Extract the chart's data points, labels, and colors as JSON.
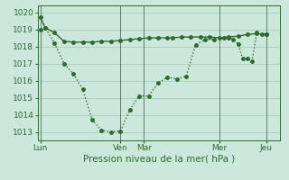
{
  "line_flat_x": [
    0,
    0.5,
    1.5,
    2.5,
    3.5,
    4.5,
    5.5,
    6.5,
    7.5,
    8.5,
    9.5,
    10.5,
    11.5,
    12.5,
    13.5,
    14,
    15,
    16,
    17,
    18,
    19,
    20,
    21,
    22,
    23,
    24
  ],
  "line_flat_y": [
    1019.7,
    1019.1,
    1018.8,
    1018.3,
    1018.25,
    1018.25,
    1018.25,
    1018.3,
    1018.3,
    1018.35,
    1018.4,
    1018.45,
    1018.5,
    1018.5,
    1018.5,
    1018.5,
    1018.55,
    1018.55,
    1018.55,
    1018.55,
    1018.5,
    1018.55,
    1018.6,
    1018.7,
    1018.75,
    1018.7
  ],
  "line_dip_x": [
    0,
    0.5,
    1.5,
    2.5,
    3.5,
    4.5,
    5.5,
    6.5,
    7.5,
    8.5,
    9.5,
    10.5,
    11.5,
    12.5,
    13.5,
    14.5,
    15.5,
    16.5,
    17.5,
    18.5,
    19.5,
    20,
    20.5,
    21,
    21.5,
    22,
    22.5,
    23,
    23.5,
    24
  ],
  "line_dip_y": [
    1019.0,
    1019.1,
    1018.2,
    1017.0,
    1016.4,
    1015.5,
    1013.7,
    1013.1,
    1013.0,
    1013.05,
    1014.3,
    1015.1,
    1015.1,
    1015.85,
    1016.2,
    1016.1,
    1016.25,
    1018.1,
    1018.4,
    1018.4,
    1018.5,
    1018.5,
    1018.4,
    1018.15,
    1017.3,
    1017.3,
    1017.15,
    1018.8,
    1018.7,
    1018.7
  ],
  "xtick_positions": [
    0,
    8.5,
    11,
    19,
    24
  ],
  "xtick_labels": [
    "Lun",
    "Ven",
    "Mar",
    "Mer",
    "Jeu"
  ],
  "ytick_positions": [
    1013,
    1014,
    1015,
    1016,
    1017,
    1018,
    1019,
    1020
  ],
  "ytick_labels": [
    "1013",
    "1014",
    "1015",
    "1016",
    "1017",
    "1018",
    "1019",
    "1020"
  ],
  "ylim": [
    1012.5,
    1020.4
  ],
  "xlim": [
    -0.3,
    25.5
  ],
  "xlabel": "Pression niveau de la mer( hPa )",
  "line_color": "#2d6a2d",
  "bg_color": "#cce8dc",
  "grid_color": "#a0c8b4",
  "marker_size": 2.5,
  "linewidth": 1.0
}
